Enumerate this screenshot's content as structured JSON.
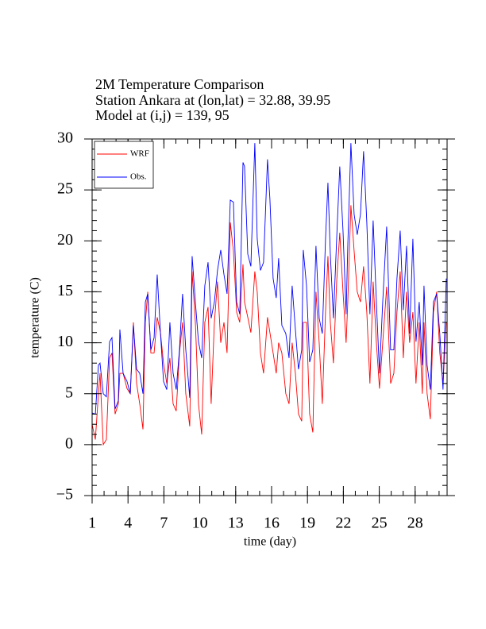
{
  "chart_data": {
    "type": "line",
    "title": [
      "2M Temperature Comparison",
      "Station Ankara at (lon,lat) = 32.88, 39.95",
      "Model at (i,j) = 139, 95"
    ],
    "x_label": "time (day)",
    "y_label": "temperature (C)",
    "xlim": [
      1,
      30.67
    ],
    "ylim": [
      -5,
      30
    ],
    "xticks": [
      1,
      4,
      7,
      10,
      13,
      16,
      19,
      22,
      25,
      28
    ],
    "yticks": [
      {
        "value": -5,
        "label": "−5"
      },
      0,
      5,
      10,
      15,
      20,
      25,
      30
    ],
    "legend": "upper left",
    "x": [
      1.0,
      1.27,
      1.53,
      1.66,
      1.93,
      2.19,
      2.46,
      2.66,
      2.92,
      3.19,
      3.32,
      3.59,
      3.92,
      4.19,
      4.45,
      4.72,
      4.98,
      5.25,
      5.45,
      5.65,
      5.91,
      6.18,
      6.44,
      6.71,
      6.97,
      7.24,
      7.5,
      7.77,
      8.03,
      8.3,
      8.56,
      8.83,
      9.16,
      9.36,
      9.63,
      9.89,
      10.16,
      10.42,
      10.69,
      10.95,
      11.22,
      11.48,
      11.75,
      12.02,
      12.28,
      12.55,
      12.81,
      13.08,
      13.34,
      13.61,
      13.74,
      14.01,
      14.27,
      14.6,
      14.8,
      15.07,
      15.33,
      15.66,
      15.86,
      16.13,
      16.39,
      16.59,
      16.86,
      17.19,
      17.46,
      17.72,
      17.99,
      18.25,
      18.52,
      18.65,
      18.92,
      19.18,
      19.45,
      19.71,
      19.98,
      20.24,
      20.51,
      20.71,
      20.91,
      21.17,
      21.44,
      21.7,
      21.97,
      22.23,
      22.37,
      22.63,
      22.9,
      23.16,
      23.43,
      23.69,
      23.96,
      24.22,
      24.49,
      24.76,
      25.02,
      25.29,
      25.62,
      25.95,
      26.22,
      26.48,
      26.75,
      27.01,
      27.28,
      27.54,
      27.81,
      28.07,
      28.34,
      28.6,
      28.74,
      29.0,
      29.27,
      29.53,
      29.8,
      30.06,
      30.33,
      30.6
    ],
    "series": [
      {
        "name": "WRF",
        "color": "#ff0000",
        "values": [
          2,
          0.5,
          5,
          7,
          0,
          0.5,
          8.5,
          9,
          3,
          4,
          7,
          7,
          5.5,
          5,
          12,
          6,
          4,
          1.5,
          12,
          15,
          9,
          9,
          12.5,
          11,
          8,
          6,
          8.5,
          4,
          3.3,
          9,
          12,
          5,
          1.8,
          17,
          12,
          4,
          1,
          12,
          13.5,
          4,
          12,
          16,
          10,
          12,
          9,
          21.8,
          19,
          13,
          12,
          17.7,
          14,
          12.5,
          11,
          17,
          15,
          9,
          7,
          12.5,
          11,
          9,
          7,
          10,
          9,
          5,
          4,
          10,
          7,
          3,
          2.3,
          12,
          12,
          3,
          1.2,
          15,
          10,
          4,
          13,
          18.5,
          12,
          8,
          16,
          20.8,
          15,
          10,
          14,
          23.5,
          19,
          15,
          14,
          17.5,
          13,
          6,
          16,
          10,
          5.5,
          10,
          15.5,
          6,
          7,
          13,
          17,
          8.5,
          15,
          10,
          13,
          6,
          12,
          5,
          12,
          5,
          2.5,
          13,
          15,
          9,
          6,
          12
        ]
      },
      {
        "name": "Obs.",
        "color": "#0000ff",
        "values": [
          3.1,
          3,
          7.8,
          8,
          5,
          4.7,
          10.1,
          10.5,
          3.5,
          4.3,
          11.3,
          7,
          6.2,
          5,
          11.7,
          7.4,
          7,
          5,
          14,
          14.8,
          9.3,
          10.5,
          16.7,
          11,
          6.2,
          5.4,
          12,
          7,
          5.4,
          9.3,
          14.8,
          9.3,
          4.6,
          18.5,
          14,
          10.1,
          8.5,
          15.6,
          17.9,
          12.4,
          14,
          17.1,
          19.1,
          16.7,
          14.8,
          24,
          23.8,
          14,
          12.8,
          27.7,
          27.3,
          18.7,
          17.5,
          29.6,
          20.2,
          17.1,
          17.9,
          28,
          24.1,
          16.3,
          14.4,
          18.3,
          11.7,
          10.9,
          8.5,
          15.6,
          11.3,
          7.4,
          9.3,
          19.1,
          15.6,
          8.1,
          9.3,
          19.5,
          12.4,
          10.9,
          20.2,
          25.7,
          18.7,
          12.4,
          20.2,
          27.3,
          21,
          12.8,
          19.5,
          29.6,
          22.6,
          20.6,
          22.6,
          28.8,
          21.8,
          12.8,
          22,
          14,
          7,
          14,
          21.4,
          9.3,
          9.3,
          16.3,
          21,
          13.2,
          19.5,
          10.9,
          20.2,
          10.1,
          14,
          7.8,
          15.6,
          7.8,
          5.4,
          14,
          14.8,
          10.9,
          5.4,
          16.3
        ]
      }
    ]
  }
}
